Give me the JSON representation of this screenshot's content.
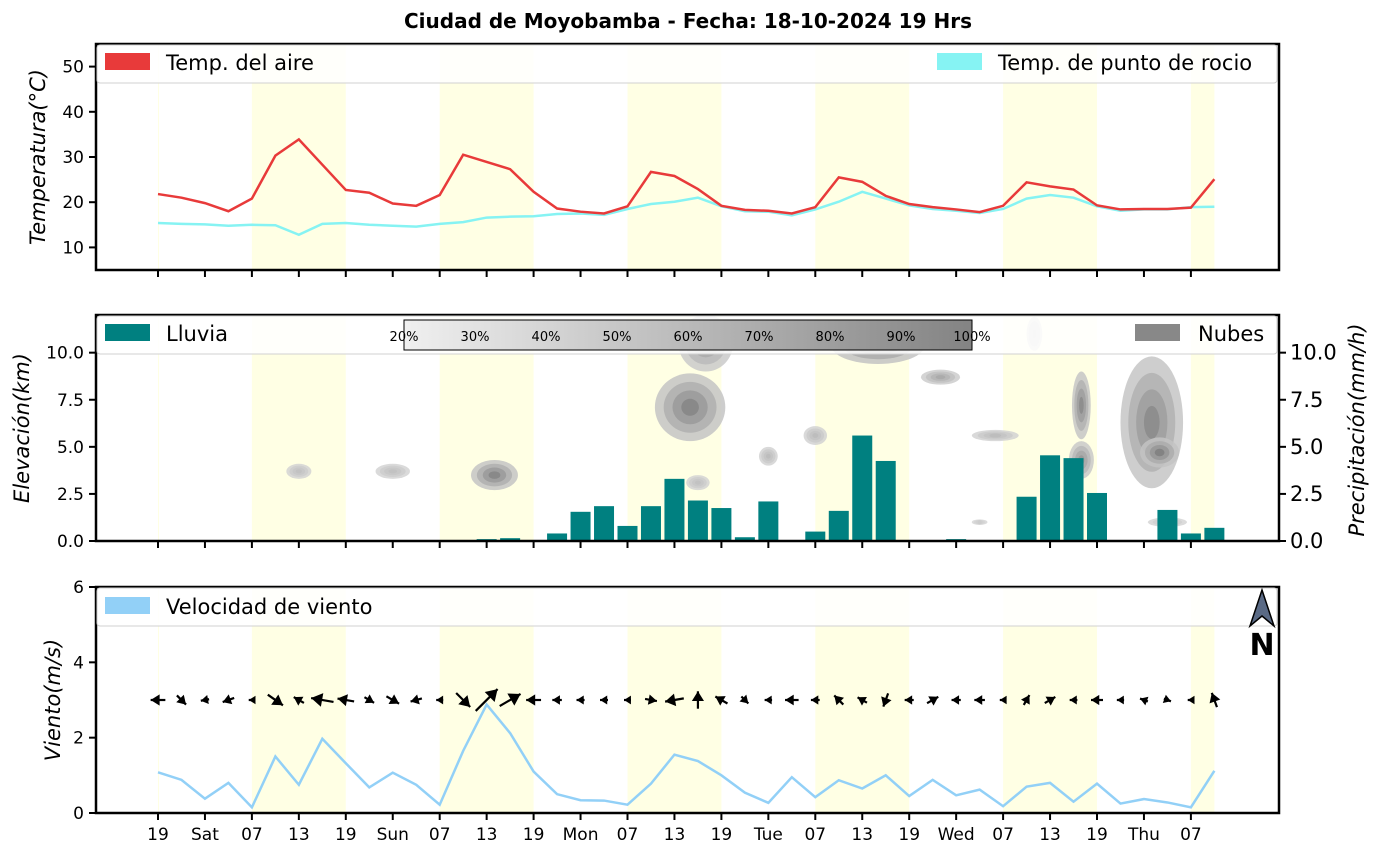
{
  "title": "Ciudad de Moyobamba   -   Fecha: 18-10-2024 19 Hrs",
  "x_tick_labels": [
    "19",
    "Sat",
    "07",
    "13",
    "19",
    "Sun",
    "07",
    "13",
    "19",
    "Mon",
    "07",
    "13",
    "19",
    "Tue",
    "07",
    "13",
    "19",
    "Wed",
    "07",
    "13",
    "19",
    "Thu",
    "07"
  ],
  "colors": {
    "air_temp": "#e83a3a",
    "dew_point": "#86f3f3",
    "rain": "#008080",
    "clouds": "#888888",
    "wind": "#92d0f7",
    "daylight": "#ffffe4"
  },
  "chart_data": [
    {
      "type": "line",
      "ylabel": "Temperatura(°C)",
      "ylim": [
        5,
        55
      ],
      "yticks": [
        10,
        20,
        30,
        40,
        50
      ],
      "x_hours": [
        0,
        3,
        6,
        9,
        12,
        15,
        18,
        21,
        24,
        27,
        30,
        33,
        36,
        39,
        42,
        45,
        48,
        51,
        54,
        57,
        60,
        63,
        66,
        69,
        72,
        75,
        78,
        81,
        84,
        87,
        90,
        93,
        96,
        99,
        102,
        105,
        108,
        111,
        114,
        117,
        120,
        123,
        126,
        129,
        132,
        135
      ],
      "legend_position": "top",
      "series": [
        {
          "name": "Temp. del aire",
          "values": [
            21.8,
            21.0,
            19.8,
            18.0,
            20.8,
            30.3,
            33.9,
            28.3,
            22.7,
            22.1,
            19.7,
            19.2,
            21.6,
            30.5,
            28.9,
            27.3,
            22.3,
            18.6,
            17.9,
            17.5,
            19.1,
            26.7,
            25.8,
            22.9,
            19.2,
            18.3,
            18.1,
            17.5,
            18.9,
            25.5,
            24.5,
            21.4,
            19.6,
            18.9,
            18.4,
            17.8,
            19.2,
            24.4,
            23.5,
            22.8,
            19.3,
            18.4,
            18.5,
            18.5,
            18.8,
            25.1
          ]
        },
        {
          "name": "Temp. de punto de rocio",
          "values": [
            15.4,
            15.2,
            15.1,
            14.8,
            15.0,
            14.9,
            12.8,
            15.2,
            15.4,
            15.0,
            14.8,
            14.6,
            15.2,
            15.6,
            16.6,
            16.8,
            16.9,
            17.4,
            17.5,
            17.2,
            18.5,
            19.6,
            20.1,
            21.0,
            19.1,
            18.0,
            17.9,
            17.1,
            18.4,
            20.1,
            22.3,
            20.8,
            19.3,
            18.5,
            18.1,
            17.6,
            18.5,
            20.8,
            21.6,
            21.0,
            19.1,
            18.1,
            18.4,
            18.4,
            18.9,
            19.0
          ]
        }
      ]
    },
    {
      "type": "bar",
      "ylabel": "Elevación(km)",
      "ylabel_right": "Precipitación(mm/h)",
      "ylim": [
        0,
        12
      ],
      "yticks": [
        "0.0",
        "2.5",
        "5.0",
        "7.5",
        "10.0"
      ],
      "colorbar_labels": [
        "20%",
        "30%",
        "40%",
        "50%",
        "60%",
        "70%",
        "80%",
        "90%",
        "100%"
      ],
      "series": [
        {
          "name": "Lluvia",
          "x_hours": [
            0,
            3,
            6,
            9,
            12,
            15,
            18,
            21,
            24,
            27,
            30,
            33,
            36,
            39,
            42,
            45,
            48,
            51,
            54,
            57,
            60,
            63,
            66,
            69,
            72,
            75,
            78,
            81,
            84,
            87,
            90,
            93,
            96,
            99,
            102,
            105,
            108,
            111,
            114,
            117,
            120,
            123,
            126,
            129,
            132,
            135
          ],
          "values": [
            0,
            0,
            0,
            0,
            0,
            0,
            0,
            0,
            0,
            0,
            0,
            0,
            0,
            0.05,
            0.1,
            0.15,
            0,
            0.4,
            1.55,
            1.85,
            0.8,
            1.85,
            3.3,
            2.15,
            1.75,
            0.2,
            2.1,
            0,
            0.5,
            1.6,
            5.6,
            4.25,
            0,
            0,
            0.1,
            0,
            0,
            2.35,
            4.55,
            4.4,
            2.55,
            0,
            0,
            1.65,
            0.4,
            0.7
          ]
        },
        {
          "name": "Nubes",
          "blobs": [
            {
              "x": 18,
              "y": 3.7,
              "rx": 1.6,
              "ry": 0.4,
              "cover": 0.35
            },
            {
              "x": 30,
              "y": 3.7,
              "rx": 2.2,
              "ry": 0.4,
              "cover": 0.35
            },
            {
              "x": 43,
              "y": 3.5,
              "rx": 3.0,
              "ry": 0.8,
              "cover": 0.85
            },
            {
              "x": 68,
              "y": 7.1,
              "rx": 4.5,
              "ry": 1.8,
              "cover": 0.85
            },
            {
              "x": 70,
              "y": 10.5,
              "rx": 3.5,
              "ry": 1.5,
              "cover": 0.65
            },
            {
              "x": 69,
              "y": 3.1,
              "rx": 1.5,
              "ry": 0.4,
              "cover": 0.35
            },
            {
              "x": 78,
              "y": 4.5,
              "rx": 1.2,
              "ry": 0.5,
              "cover": 0.4
            },
            {
              "x": 84,
              "y": 5.6,
              "rx": 1.5,
              "ry": 0.5,
              "cover": 0.4
            },
            {
              "x": 92,
              "y": 10.4,
              "rx": 6.0,
              "ry": 1.0,
              "cover": 0.9
            },
            {
              "x": 100,
              "y": 8.7,
              "rx": 2.5,
              "ry": 0.4,
              "cover": 0.55
            },
            {
              "x": 112,
              "y": 11.0,
              "rx": 1.0,
              "ry": 0.9,
              "cover": 0.3
            },
            {
              "x": 107,
              "y": 5.6,
              "rx": 3.0,
              "ry": 0.3,
              "cover": 0.4
            },
            {
              "x": 118,
              "y": 7.2,
              "rx": 1.2,
              "ry": 1.8,
              "cover": 0.8
            },
            {
              "x": 118,
              "y": 4.3,
              "rx": 1.6,
              "ry": 1.0,
              "cover": 0.7
            },
            {
              "x": 127,
              "y": 6.3,
              "rx": 4.0,
              "ry": 3.5,
              "cover": 0.8
            },
            {
              "x": 128,
              "y": 4.7,
              "rx": 2.5,
              "ry": 0.8,
              "cover": 0.9
            },
            {
              "x": 129,
              "y": 1.0,
              "rx": 2.5,
              "ry": 0.25,
              "cover": 0.3
            },
            {
              "x": 105,
              "y": 1.0,
              "rx": 1.0,
              "ry": 0.15,
              "cover": 0.25
            }
          ]
        }
      ]
    },
    {
      "type": "line",
      "ylabel": "Viento(m/s)",
      "ylim": [
        0,
        6
      ],
      "yticks": [
        0,
        2,
        4,
        6
      ],
      "north_label": "N",
      "series": [
        {
          "name": "Velocidad de viento",
          "x_hours": [
            0,
            3,
            6,
            9,
            12,
            15,
            18,
            21,
            24,
            27,
            30,
            33,
            36,
            39,
            42,
            45,
            48,
            51,
            54,
            57,
            60,
            63,
            66,
            69,
            72,
            75,
            78,
            81,
            84,
            87,
            90,
            93,
            96,
            99,
            102,
            105,
            108,
            111,
            114,
            117,
            120,
            123,
            126,
            129,
            132,
            135
          ],
          "values": [
            1.08,
            0.88,
            0.38,
            0.8,
            0.15,
            1.5,
            0.75,
            1.97,
            1.32,
            0.68,
            1.07,
            0.75,
            0.22,
            1.65,
            2.88,
            2.12,
            1.1,
            0.5,
            0.34,
            0.33,
            0.22,
            0.78,
            1.55,
            1.38,
            1.0,
            0.54,
            0.27,
            0.95,
            0.42,
            0.87,
            0.65,
            1.0,
            0.45,
            0.88,
            0.47,
            0.62,
            0.18,
            0.7,
            0.8,
            0.3,
            0.78,
            0.25,
            0.37,
            0.28,
            0.15,
            1.12
          ]
        }
      ],
      "wind_vectors": {
        "x_hours": [
          0,
          3,
          6,
          9,
          12,
          15,
          18,
          21,
          24,
          27,
          30,
          33,
          36,
          39,
          42,
          45,
          48,
          51,
          54,
          57,
          60,
          63,
          66,
          69,
          72,
          75,
          78,
          81,
          84,
          87,
          90,
          93,
          96,
          99,
          102,
          105,
          108,
          111,
          114,
          117,
          120,
          123,
          126,
          129,
          132,
          135
        ],
        "direction_deg": [
          270,
          135,
          260,
          250,
          270,
          125,
          300,
          280,
          280,
          120,
          120,
          255,
          270,
          135,
          45,
          60,
          270,
          270,
          270,
          270,
          270,
          100,
          260,
          0,
          300,
          135,
          270,
          270,
          270,
          315,
          300,
          200,
          270,
          60,
          270,
          270,
          270,
          30,
          60,
          270,
          270,
          270,
          290,
          110,
          270,
          340
        ],
        "speed": [
          1.08,
          0.88,
          0.38,
          0.8,
          0.15,
          1.5,
          0.75,
          1.97,
          1.32,
          0.68,
          1.07,
          0.75,
          0.22,
          1.65,
          2.88,
          2.12,
          1.1,
          0.5,
          0.34,
          0.33,
          0.22,
          0.78,
          1.55,
          1.38,
          1.0,
          0.54,
          0.27,
          0.95,
          0.42,
          0.87,
          0.65,
          1.0,
          0.45,
          0.88,
          0.47,
          0.62,
          0.18,
          0.7,
          0.8,
          0.3,
          0.78,
          0.25,
          0.37,
          0.28,
          0.15,
          1.12
        ]
      }
    }
  ]
}
